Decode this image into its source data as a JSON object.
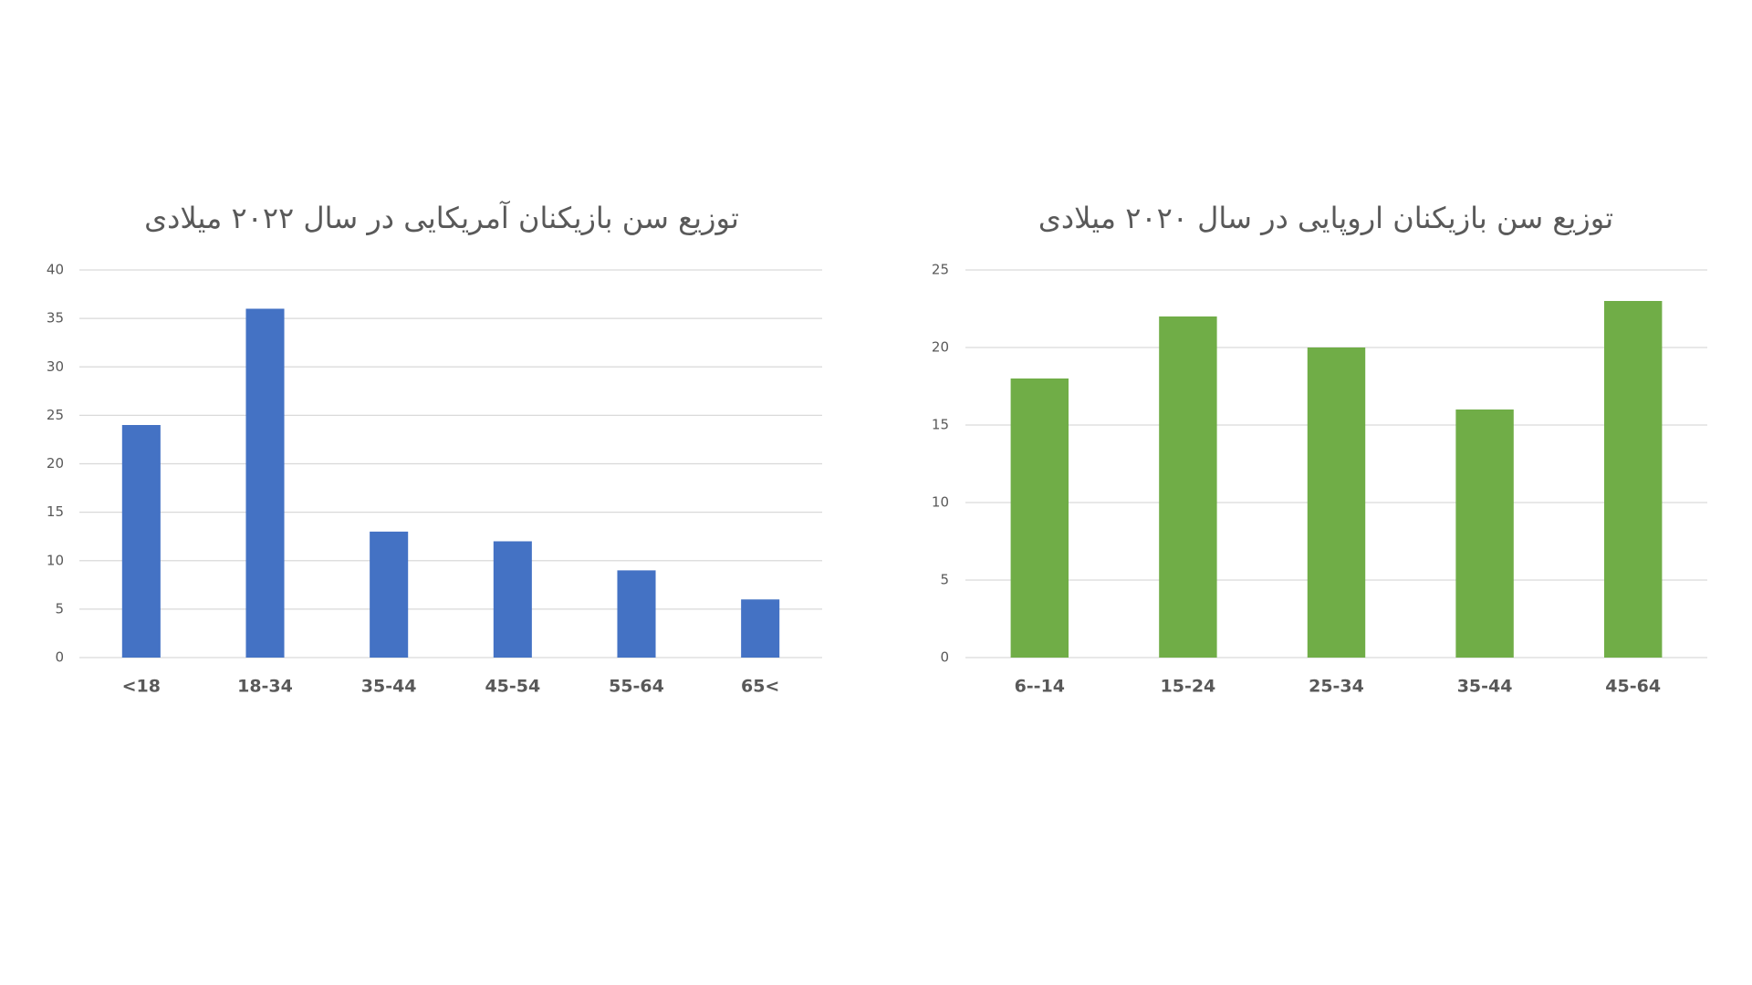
{
  "chart_data": [
    {
      "type": "bar",
      "title": "توزیع سن بازیکنان آمریکایی در سال ۲۰۲۲ میلادی",
      "categories": [
        "<18",
        "18-34",
        "35-44",
        "45-54",
        "55-64",
        "65<"
      ],
      "values": [
        24,
        36,
        13,
        12,
        9,
        6
      ],
      "color": "#4472c4",
      "ylim": [
        0,
        40
      ],
      "yticks": [
        0,
        5,
        10,
        15,
        20,
        25,
        30,
        35,
        40
      ],
      "grid": true
    },
    {
      "type": "bar",
      "title": "توزیع سن بازیکنان اروپایی در سال ۲۰۲۰ میلادی",
      "categories": [
        "6--14",
        "15-24",
        "25-34",
        "35-44",
        "45-64"
      ],
      "values": [
        18,
        22,
        20,
        16,
        23
      ],
      "color": "#70ad47",
      "ylim": [
        0,
        25
      ],
      "yticks": [
        0,
        5,
        10,
        15,
        20,
        25
      ],
      "grid": true
    }
  ]
}
